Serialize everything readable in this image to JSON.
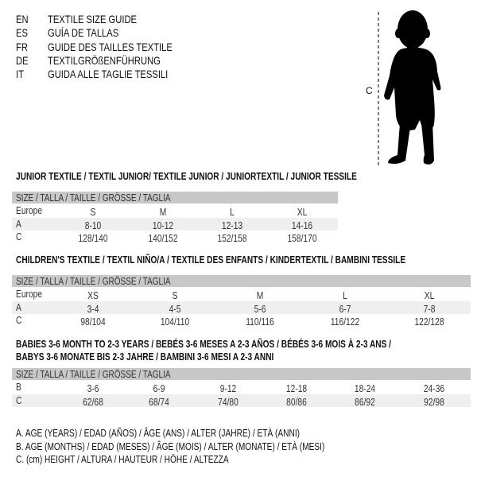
{
  "header": {
    "lines": [
      {
        "code": "EN",
        "text": "TEXTILE SIZE GUIDE"
      },
      {
        "code": "ES",
        "text": "GUÍA DE TALLAS"
      },
      {
        "code": "FR",
        "text": "GUIDE DES TAILLES TEXTILE"
      },
      {
        "code": "DE",
        "text": "TEXTILGRÖßENFÜHRUNG"
      },
      {
        "code": "IT",
        "text": "GUIDA ALLE TAGLIE TESSILI"
      }
    ]
  },
  "figure": {
    "label": "C",
    "icon": "child-silhouette"
  },
  "size_header": "SIZE / TALLA / TAILLE / GRÖSSE / TAGLIA",
  "junior": {
    "title": "JUNIOR TEXTILE / TEXTIL JUNIOR/ TEXTILE JUNIOR / JUNIORTEXTIL / JUNIOR TESSILE",
    "rows": [
      {
        "label": "Europe",
        "values": [
          "S",
          "M",
          "L",
          "XL"
        ]
      },
      {
        "label": "A",
        "values": [
          "8-10",
          "10-12",
          "12-13",
          "14-16"
        ]
      },
      {
        "label": "C",
        "values": [
          "128/140",
          "140/152",
          "152/158",
          "158/170"
        ]
      }
    ]
  },
  "children": {
    "title": "CHILDREN'S TEXTILE / TEXTIL NIÑO/A / TEXTILE DES ENFANTS / KINDERTEXTIL / BAMBINI TESSILE",
    "rows": [
      {
        "label": "Europe",
        "values": [
          "XS",
          "S",
          "M",
          "L",
          "XL"
        ]
      },
      {
        "label": "A",
        "values": [
          "3-4",
          "4-5",
          "5-6",
          "6-7",
          "7-8"
        ]
      },
      {
        "label": "C",
        "values": [
          "98/104",
          "104/110",
          "110/116",
          "116/122",
          "122/128"
        ]
      }
    ]
  },
  "babies": {
    "title1": "BABIES 3-6 MONTH TO 2-3 YEARS / BEBÉS 3-6 MESES A 2-3 AÑOS / BÉBÉS 3-6 MOIS À 2-3 ANS /",
    "title2": "BABYS 3-6 MONATE BIS 2-3 JAHRE / BAMBINI 3-6 MESI A 2-3 ANNI",
    "rows": [
      {
        "label": "B",
        "values": [
          "3-6",
          "6-9",
          "9-12",
          "12-18",
          "18-24",
          "24-36"
        ]
      },
      {
        "label": "C",
        "values": [
          "62/68",
          "68/74",
          "74/80",
          "80/86",
          "86/92",
          "92/98"
        ]
      }
    ]
  },
  "legend": [
    "A. AGE (YEARS) / EDAD (AÑOS) / ÂGE (ANS) / ALTER (JAHRE) / ETÀ (ANNI)",
    "B. AGE (MONTHS) / EDAD (MESES) / ÂGE (MOIS) / ALTER (MONATE) / ETÀ (MESI)",
    "C. (cm) HEIGHT / ALTURA / HAUTEUR / HÖHE / ALTEZZA"
  ]
}
